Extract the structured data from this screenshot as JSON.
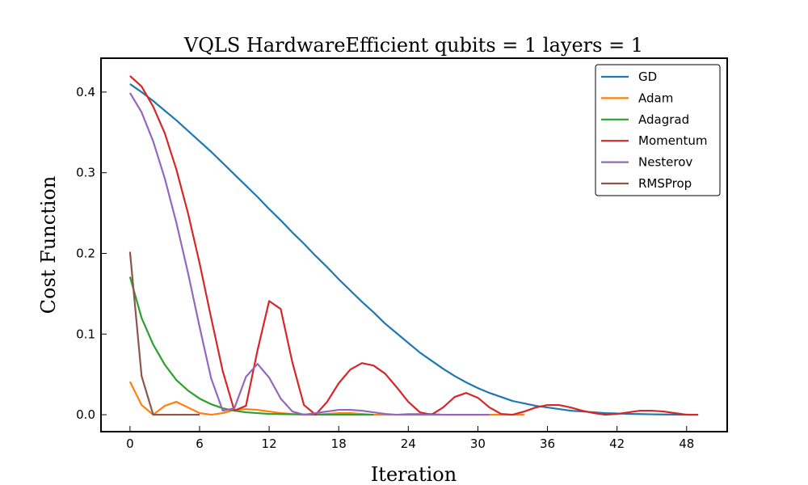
{
  "chart_data": {
    "type": "line",
    "title": "VQLS   HardwareEfficient    qubits = 1    layers = 1",
    "xlabel": "Iteration",
    "ylabel": "Cost Function",
    "xlim": [
      -2.5,
      51.5
    ],
    "ylim": [
      -0.021,
      0.442
    ],
    "xticks": [
      0,
      6,
      12,
      18,
      24,
      30,
      36,
      42,
      48
    ],
    "yticks": [
      0.0,
      0.1,
      0.2,
      0.3,
      0.4
    ],
    "ytick_labels": [
      "0.0",
      "0.1",
      "0.2",
      "0.3",
      "0.4"
    ],
    "grid": false,
    "legend_position": "top-right",
    "series": [
      {
        "name": "GD",
        "color": "#1f77b4",
        "x": [
          0,
          1,
          2,
          3,
          4,
          5,
          6,
          7,
          8,
          9,
          10,
          11,
          12,
          13,
          14,
          15,
          16,
          17,
          18,
          19,
          20,
          21,
          22,
          23,
          24,
          25,
          26,
          27,
          28,
          29,
          30,
          31,
          32,
          33,
          34,
          35,
          36,
          37,
          38,
          39,
          40,
          41,
          42,
          43,
          44,
          45,
          46,
          47,
          48,
          49
        ],
        "y": [
          0.41,
          0.4,
          0.389,
          0.377,
          0.365,
          0.352,
          0.339,
          0.326,
          0.312,
          0.298,
          0.284,
          0.27,
          0.255,
          0.241,
          0.226,
          0.212,
          0.197,
          0.183,
          0.168,
          0.154,
          0.14,
          0.127,
          0.113,
          0.101,
          0.089,
          0.077,
          0.067,
          0.057,
          0.048,
          0.04,
          0.033,
          0.027,
          0.022,
          0.017,
          0.014,
          0.011,
          0.009,
          0.007,
          0.005,
          0.004,
          0.003,
          0.002,
          0.0015,
          0.001,
          0.0008,
          0.0005,
          0.0003,
          0.0002,
          0.0001,
          0.0
        ]
      },
      {
        "name": "Adam",
        "color": "#ff7f0e",
        "x": [
          0,
          1,
          2,
          3,
          4,
          5,
          6,
          7,
          8,
          9,
          10,
          11,
          12,
          13,
          14,
          15,
          16,
          17,
          18,
          19,
          20,
          21,
          22,
          23,
          24,
          25,
          26,
          27,
          28,
          29,
          30,
          31,
          32,
          33,
          34
        ],
        "y": [
          0.041,
          0.012,
          0.0,
          0.011,
          0.016,
          0.009,
          0.002,
          0.0,
          0.002,
          0.006,
          0.007,
          0.006,
          0.004,
          0.002,
          0.001,
          0.0,
          0.0,
          0.001,
          0.002,
          0.002,
          0.001,
          0.0,
          0.0,
          0.0,
          0.001,
          0.001,
          0.001,
          0.0,
          0.0,
          0.0,
          0.0,
          0.0,
          0.0,
          0.0,
          0.0
        ]
      },
      {
        "name": "Adagrad",
        "color": "#2ca02c",
        "x": [
          0,
          1,
          2,
          3,
          4,
          5,
          6,
          7,
          8,
          9,
          10,
          11,
          12,
          13,
          14,
          15,
          16,
          17,
          18,
          19,
          20,
          21
        ],
        "y": [
          0.171,
          0.12,
          0.087,
          0.062,
          0.043,
          0.03,
          0.02,
          0.013,
          0.008,
          0.005,
          0.003,
          0.002,
          0.001,
          0.0008,
          0.0005,
          0.0003,
          0.0002,
          0.0001,
          0.0,
          0.0,
          0.0,
          0.0
        ]
      },
      {
        "name": "Momentum",
        "color": "#d62728",
        "x": [
          0,
          1,
          2,
          3,
          4,
          5,
          6,
          7,
          8,
          9,
          10,
          11,
          12,
          13,
          14,
          15,
          16,
          17,
          18,
          19,
          20,
          21,
          22,
          23,
          24,
          25,
          26,
          27,
          28,
          29,
          30,
          31,
          32,
          33,
          34,
          35,
          36,
          37,
          38,
          39,
          40,
          41,
          42,
          43,
          44,
          45,
          46,
          47,
          48,
          49
        ],
        "y": [
          0.42,
          0.407,
          0.382,
          0.349,
          0.304,
          0.25,
          0.188,
          0.12,
          0.054,
          0.005,
          0.011,
          0.08,
          0.141,
          0.131,
          0.065,
          0.012,
          0.0,
          0.016,
          0.039,
          0.056,
          0.064,
          0.061,
          0.051,
          0.034,
          0.016,
          0.003,
          0.0,
          0.009,
          0.022,
          0.027,
          0.021,
          0.009,
          0.001,
          0.0,
          0.004,
          0.009,
          0.012,
          0.012,
          0.009,
          0.005,
          0.002,
          0.0,
          0.001,
          0.003,
          0.005,
          0.005,
          0.004,
          0.002,
          0.0,
          0.0
        ]
      },
      {
        "name": "Nesterov",
        "color": "#9467bd",
        "x": [
          0,
          1,
          2,
          3,
          4,
          5,
          6,
          7,
          8,
          9,
          10,
          11,
          12,
          13,
          14,
          15,
          16,
          17,
          18,
          19,
          20,
          21,
          22,
          23,
          24,
          25,
          26,
          27,
          28,
          29,
          30,
          31
        ],
        "y": [
          0.399,
          0.375,
          0.339,
          0.293,
          0.238,
          0.176,
          0.109,
          0.045,
          0.005,
          0.008,
          0.047,
          0.063,
          0.046,
          0.02,
          0.004,
          0.0,
          0.002,
          0.004,
          0.006,
          0.006,
          0.005,
          0.003,
          0.001,
          0.0,
          0.0,
          0.0,
          0.0,
          0.0,
          0.0,
          0.0,
          0.0,
          0.0
        ]
      },
      {
        "name": "RMSProp",
        "color": "#8c564b",
        "x": [
          0,
          1,
          2,
          3,
          4,
          5,
          6
        ],
        "y": [
          0.202,
          0.048,
          0.0,
          0.0,
          0.0,
          0.0,
          0.0
        ]
      }
    ]
  }
}
